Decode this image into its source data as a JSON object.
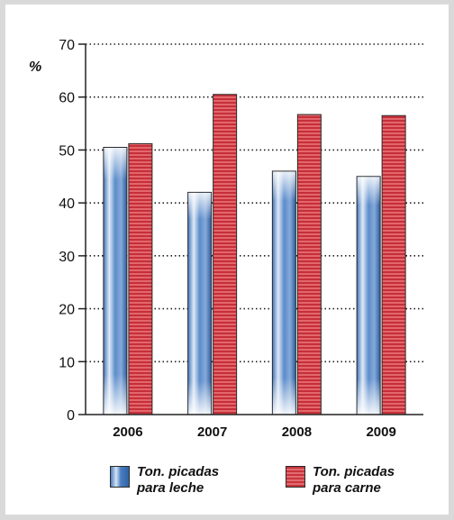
{
  "chart_data": {
    "type": "bar",
    "unit": "%",
    "categories": [
      "2006",
      "2007",
      "2008",
      "2009"
    ],
    "series": [
      {
        "name": "Ton. picadas para leche",
        "color": "#4a7fc0",
        "values": [
          50.5,
          42,
          46,
          45
        ]
      },
      {
        "name": "Ton. picadas para carne",
        "color": "#c9343c",
        "values": [
          51.2,
          60.5,
          56.7,
          56.5
        ]
      }
    ],
    "ylim": [
      0,
      70
    ],
    "yticks": [
      0,
      10,
      20,
      30,
      40,
      50,
      60,
      70
    ],
    "grid": true,
    "legend_position": "bottom"
  },
  "legend": {
    "leche": {
      "line1": "Ton. picadas",
      "line2": "para leche"
    },
    "carne": {
      "line1": "Ton. picadas",
      "line2": "para carne"
    }
  }
}
